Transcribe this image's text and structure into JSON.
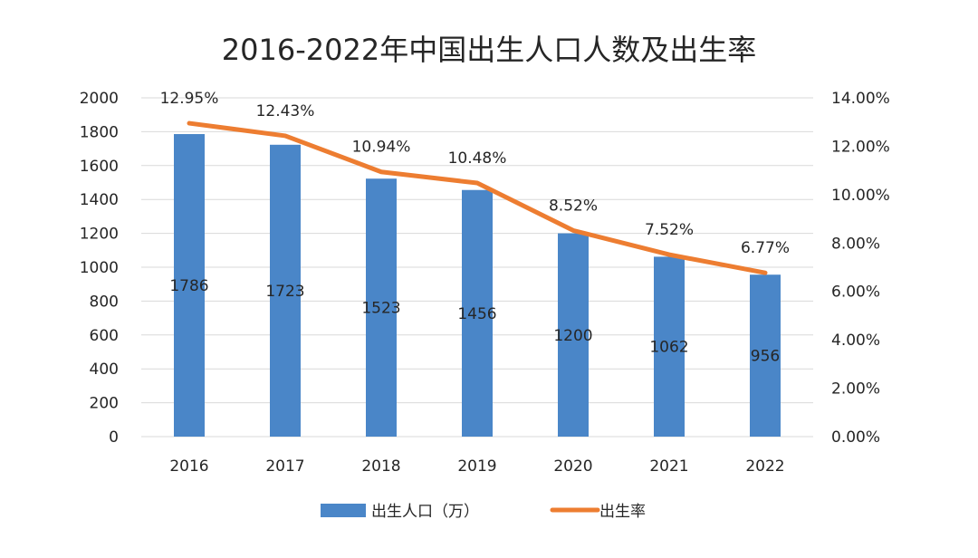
{
  "chart_data": {
    "type": "bar",
    "title": "2016-2022年中国出生人口人数及出生率",
    "categories": [
      "2016",
      "2017",
      "2018",
      "2019",
      "2020",
      "2021",
      "2022"
    ],
    "series": [
      {
        "name": "出生人口（万）",
        "type": "bar",
        "axis": "left",
        "color": "#4a86c8",
        "values": [
          1786,
          1723,
          1523,
          1456,
          1200,
          1062,
          956
        ],
        "labels": [
          "1786",
          "1723",
          "1523",
          "1456",
          "1200",
          "1062",
          "956"
        ]
      },
      {
        "name": "出生率",
        "type": "line",
        "axis": "right",
        "color": "#ed7d31",
        "values": [
          12.95,
          12.43,
          10.94,
          10.48,
          8.52,
          7.52,
          6.77
        ],
        "labels": [
          "12.95%",
          "12.43%",
          "10.94%",
          "10.48%",
          "8.52%",
          "7.52%",
          "6.77%"
        ]
      }
    ],
    "y_left": {
      "ylim": [
        0,
        2000
      ],
      "ticks": [
        "0",
        "200",
        "400",
        "600",
        "800",
        "1000",
        "1200",
        "1400",
        "1600",
        "1800",
        "2000"
      ]
    },
    "y_right": {
      "ylim": [
        0,
        14
      ],
      "ticks": [
        "0.00%",
        "2.00%",
        "4.00%",
        "6.00%",
        "8.00%",
        "10.00%",
        "12.00%",
        "14.00%"
      ]
    },
    "grid": true,
    "legend_position": "bottom"
  }
}
